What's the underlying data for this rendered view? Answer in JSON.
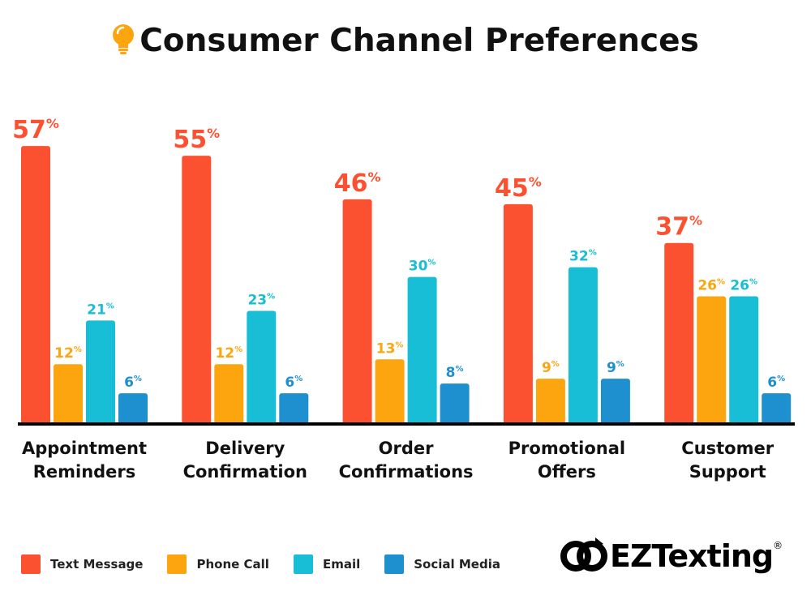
{
  "title": "Consumer Channel Preferences",
  "colors": {
    "Text Message": "#fc5130",
    "Phone Call": "#fda50f",
    "Email": "#17bed6",
    "Social Media": "#1e90d0"
  },
  "chart_data": {
    "type": "bar",
    "title": "Consumer Channel Preferences",
    "categories": [
      [
        "Appointment",
        "Reminders"
      ],
      [
        "Delivery",
        "Confirmation"
      ],
      [
        "Order",
        "Confirmations"
      ],
      [
        "Promotional",
        "Offers"
      ],
      [
        "Customer",
        "Support"
      ]
    ],
    "series": [
      {
        "name": "Text Message",
        "values": [
          57,
          55,
          46,
          45,
          37
        ]
      },
      {
        "name": "Phone Call",
        "values": [
          12,
          12,
          13,
          9,
          26
        ]
      },
      {
        "name": "Email",
        "values": [
          21,
          23,
          30,
          32,
          26
        ]
      },
      {
        "name": "Social Media",
        "values": [
          6,
          6,
          8,
          9,
          6
        ]
      }
    ],
    "unit": "%",
    "ylim": [
      0,
      60
    ],
    "grid": false,
    "legend": "bottom-left"
  },
  "legend": [
    "Text Message",
    "Phone Call",
    "Email",
    "Social Media"
  ],
  "logo": {
    "text": "EZTexting",
    "mark": "®"
  }
}
